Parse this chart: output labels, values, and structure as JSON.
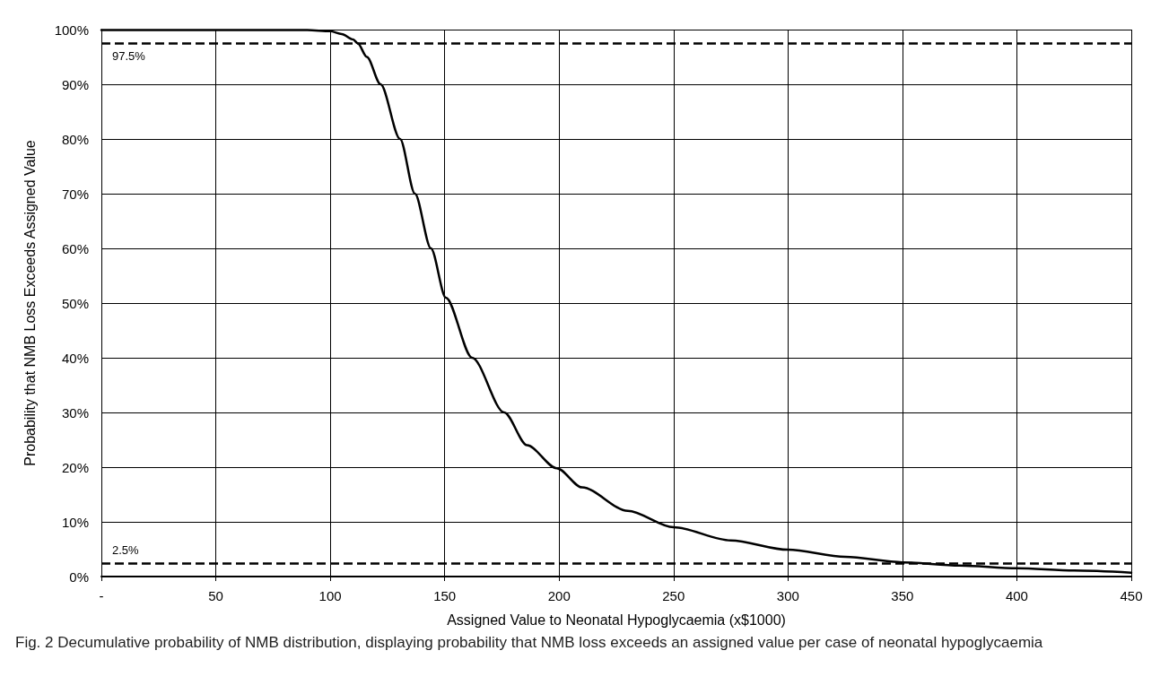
{
  "chart_data": {
    "type": "line",
    "title": "Fig. 2 Decumulative probability of NMB distribution, displaying probability that NMB loss exceeds an assigned value per case of neonatal hypoglycaemia",
    "xlabel": "Assigned Value to Neonatal Hypoglycaemia (x$1000)",
    "ylabel": "Probability that NMB Loss Exceeds Assigned Value",
    "x": [
      0,
      50,
      90,
      100,
      105,
      110,
      112,
      116,
      122,
      130.5,
      137,
      144,
      150.5,
      162,
      176,
      186,
      199,
      210,
      230,
      250,
      275,
      300,
      325,
      350,
      375,
      400,
      425,
      450
    ],
    "series": [
      {
        "color": "#000000",
        "values": [
          99.9,
          99.9,
          99.9,
          99.7,
          99.2,
          98.2,
          97.5,
          95,
          90,
          80,
          70,
          60,
          51,
          40,
          30,
          24,
          19.8,
          16.3,
          12,
          9,
          6.6,
          4.9,
          3.6,
          2.6,
          2,
          1.5,
          1.1,
          0.7
        ]
      }
    ],
    "xlim": [
      0,
      450
    ],
    "xticks": [
      {
        "value": 0,
        "label": "-"
      },
      50,
      100,
      150,
      200,
      250,
      300,
      350,
      400,
      450
    ],
    "ylim": [
      0,
      100
    ],
    "yticks": [
      {
        "value": 0,
        "label": "0%"
      },
      {
        "value": 10,
        "label": "10%"
      },
      {
        "value": 20,
        "label": "20%"
      },
      {
        "value": 30,
        "label": "30%"
      },
      {
        "value": 40,
        "label": "40%"
      },
      {
        "value": 50,
        "label": "50%"
      },
      {
        "value": 60,
        "label": "60%"
      },
      {
        "value": 70,
        "label": "70%"
      },
      {
        "value": 80,
        "label": "80%"
      },
      {
        "value": 90,
        "label": "90%"
      },
      {
        "value": 100,
        "label": "100%"
      }
    ],
    "ref_lines": [
      {
        "axis": "y",
        "value": 97.5,
        "label": "97.5%",
        "color": "#000000",
        "line_style": "dashed"
      },
      {
        "axis": "y",
        "value": 2.5,
        "label": "2.5%",
        "color": "#000000",
        "line_style": "dashed"
      }
    ],
    "grid": true,
    "marker": "none",
    "line_style": "solid"
  }
}
